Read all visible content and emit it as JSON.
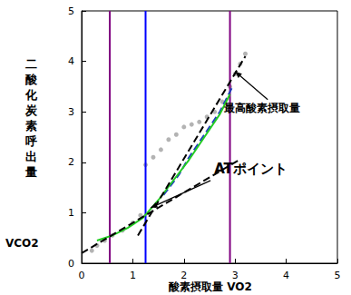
{
  "chart_data": {
    "type": "line",
    "xlabel": "酸素摂取量 VO2",
    "ylabel": [
      "二酸化炭素呼出量",
      "VCO2"
    ],
    "xlim": [
      0,
      5
    ],
    "xticks": [
      0,
      1,
      2,
      3,
      4,
      5
    ],
    "ylim": [
      0,
      5
    ],
    "yticks": [
      0,
      1,
      2,
      3,
      4,
      5
    ],
    "grid": false,
    "series": [
      {
        "type": "line",
        "color": "#800080",
        "marker": "none",
        "line_style": "solid",
        "x": [
          0.55,
          0.55
        ],
        "values": [
          0,
          5
        ]
      },
      {
        "type": "line",
        "color": "#0000ff",
        "marker": "none",
        "line_style": "solid",
        "x": [
          1.25,
          1.25
        ],
        "values": [
          0,
          5
        ]
      },
      {
        "type": "line",
        "color": "#800080",
        "marker": "none",
        "line_style": "solid",
        "x": [
          2.9,
          2.9
        ],
        "values": [
          0,
          5
        ]
      },
      {
        "type": "scatter",
        "color": "#a0a0a0",
        "marker": "circle",
        "x": [
          0.2,
          0.3,
          0.45,
          0.6,
          0.8,
          1.0,
          1.15,
          1.25,
          1.4,
          1.55,
          1.7,
          1.85,
          2.0,
          2.15,
          2.3,
          2.45,
          2.6,
          2.75,
          2.9,
          3.0,
          3.1,
          3.2
        ],
        "values": [
          0.25,
          0.35,
          0.45,
          0.55,
          0.65,
          0.8,
          0.95,
          1.95,
          2.1,
          2.25,
          2.45,
          2.55,
          2.7,
          2.75,
          2.8,
          2.9,
          3.0,
          3.2,
          3.5,
          3.75,
          3.95,
          4.15
        ]
      },
      {
        "type": "line",
        "color": "#1f3fbf",
        "marker": "none",
        "line_style": "dashed",
        "x": [
          1.6,
          1.9,
          2.1,
          2.3,
          2.5,
          2.7,
          2.85,
          2.95
        ],
        "values": [
          1.35,
          1.75,
          2.1,
          2.4,
          2.7,
          3.0,
          3.3,
          3.5
        ]
      },
      {
        "type": "line",
        "color": "#22cc22",
        "marker": "none",
        "line_style": "solid",
        "x": [
          0.3,
          0.6,
          0.9,
          1.2,
          1.5,
          1.8,
          2.1,
          2.4,
          2.7,
          2.9
        ],
        "values": [
          0.45,
          0.55,
          0.7,
          0.9,
          1.25,
          1.65,
          2.05,
          2.5,
          2.95,
          3.35
        ]
      },
      {
        "type": "line",
        "color": "#000000",
        "marker": "none",
        "line_style": "dashed",
        "x": [
          0,
          3.1
        ],
        "values": [
          0.2,
          2.06
        ]
      },
      {
        "type": "line",
        "color": "#000000",
        "marker": "none",
        "line_style": "dashed",
        "x": [
          1.1,
          3.2
        ],
        "values": [
          0.55,
          4.1
        ]
      }
    ],
    "annotations": [
      {
        "text": "最高酸素摂取量",
        "x": 3.0,
        "y": 3.8
      },
      {
        "text": "ATポイント",
        "x": 1.35,
        "y": 1.1
      }
    ]
  }
}
